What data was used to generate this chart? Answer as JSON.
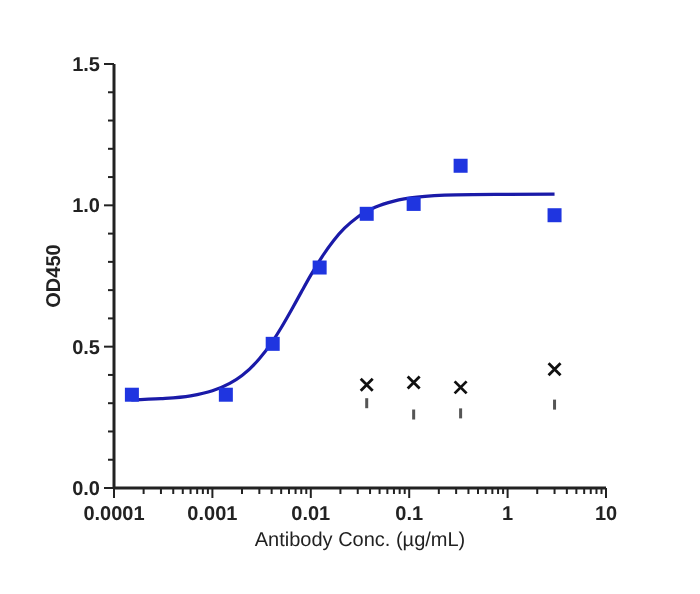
{
  "chart_data": {
    "type": "scatter",
    "xlabel": "Antibody Conc. (µg/mL)",
    "ylabel": "OD450",
    "log": "x",
    "grid": false,
    "xlim": [
      0.0001,
      10
    ],
    "ylim": [
      0,
      1.5
    ],
    "xticks": [
      0.0001,
      {
        "value": 0.0002,
        "label": null
      },
      {
        "value": 0.0003,
        "label": null
      },
      {
        "value": 0.0004,
        "label": null
      },
      {
        "value": 0.0005,
        "label": null
      },
      {
        "value": 0.0006,
        "label": null
      },
      {
        "value": 0.0007,
        "label": null
      },
      {
        "value": 0.0008,
        "label": null
      },
      {
        "value": 0.0009,
        "label": null
      },
      0.001,
      {
        "value": 0.002,
        "label": null
      },
      {
        "value": 0.003,
        "label": null
      },
      {
        "value": 0.004,
        "label": null
      },
      {
        "value": 0.005,
        "label": null
      },
      {
        "value": 0.006,
        "label": null
      },
      {
        "value": 0.007,
        "label": null
      },
      {
        "value": 0.008,
        "label": null
      },
      {
        "value": 0.009,
        "label": null
      },
      0.01,
      {
        "value": 0.02,
        "label": null
      },
      {
        "value": 0.03,
        "label": null
      },
      {
        "value": 0.04,
        "label": null
      },
      {
        "value": 0.05,
        "label": null
      },
      {
        "value": 0.06,
        "label": null
      },
      {
        "value": 0.07,
        "label": null
      },
      {
        "value": 0.08,
        "label": null
      },
      {
        "value": 0.09,
        "label": null
      },
      0.1,
      {
        "value": 0.2,
        "label": null
      },
      {
        "value": 0.3,
        "label": null
      },
      {
        "value": 0.4,
        "label": null
      },
      {
        "value": 0.5,
        "label": null
      },
      {
        "value": 0.6,
        "label": null
      },
      {
        "value": 0.7,
        "label": null
      },
      {
        "value": 0.8,
        "label": null
      },
      {
        "value": 0.9,
        "label": null
      },
      1,
      {
        "value": 2,
        "label": null
      },
      {
        "value": 3,
        "label": null
      },
      {
        "value": 4,
        "label": null
      },
      {
        "value": 5,
        "label": null
      },
      {
        "value": 6,
        "label": null
      },
      {
        "value": 7,
        "label": null
      },
      {
        "value": 8,
        "label": null
      },
      {
        "value": 9,
        "label": null
      },
      10
    ],
    "yticks": [
      {
        "value": 0,
        "label": "0.0"
      },
      {
        "value": 0.1,
        "label": null
      },
      {
        "value": 0.2,
        "label": null
      },
      {
        "value": 0.3,
        "label": null
      },
      {
        "value": 0.4,
        "label": null
      },
      {
        "value": 0.5,
        "label": "0.5"
      },
      {
        "value": 0.6,
        "label": null
      },
      {
        "value": 0.7,
        "label": null
      },
      {
        "value": 0.8,
        "label": null
      },
      {
        "value": 0.9,
        "label": null
      },
      {
        "value": 1,
        "label": "1.0"
      },
      {
        "value": 1.1,
        "label": null
      },
      {
        "value": 1.2,
        "label": null
      },
      {
        "value": 1.3,
        "label": null
      },
      {
        "value": 1.4,
        "label": null
      },
      {
        "value": 1.5,
        "label": "1.5"
      }
    ],
    "series": [
      {
        "type": "line",
        "color": "#1a1aa8",
        "marker": "none",
        "x": [
          0.00015,
          0.0003,
          0.0006,
          0.001,
          0.0015,
          0.002,
          0.003,
          0.004,
          0.005,
          0.0065,
          0.008,
          0.01,
          0.013,
          0.017,
          0.022,
          0.03,
          0.045,
          0.07,
          0.12,
          0.3,
          1,
          3
        ],
        "values": [
          0.312,
          0.316,
          0.326,
          0.344,
          0.37,
          0.398,
          0.457,
          0.514,
          0.567,
          0.636,
          0.693,
          0.753,
          0.818,
          0.875,
          0.919,
          0.959,
          0.993,
          1.015,
          1.029,
          1.037,
          1.039,
          1.04
        ]
      },
      {
        "color": "#1f35e0",
        "marker": "square",
        "x": [
          0.000152,
          0.00137,
          0.0041,
          0.0123,
          0.037,
          0.111,
          0.333,
          3
        ],
        "values": [
          0.33,
          0.33,
          0.51,
          0.78,
          0.97,
          1.005,
          1.14,
          0.965
        ]
      },
      {
        "color": "#111111",
        "marker": "cross",
        "x": [
          0.037,
          0.111,
          0.333,
          3
        ],
        "values": [
          0.365,
          0.373,
          0.356,
          0.42
        ]
      },
      {
        "color": "#555555",
        "x": [
          0.037,
          0.111,
          0.333,
          3
        ],
        "values": [
          0.3,
          0.26,
          0.264,
          0.295
        ]
      }
    ]
  }
}
